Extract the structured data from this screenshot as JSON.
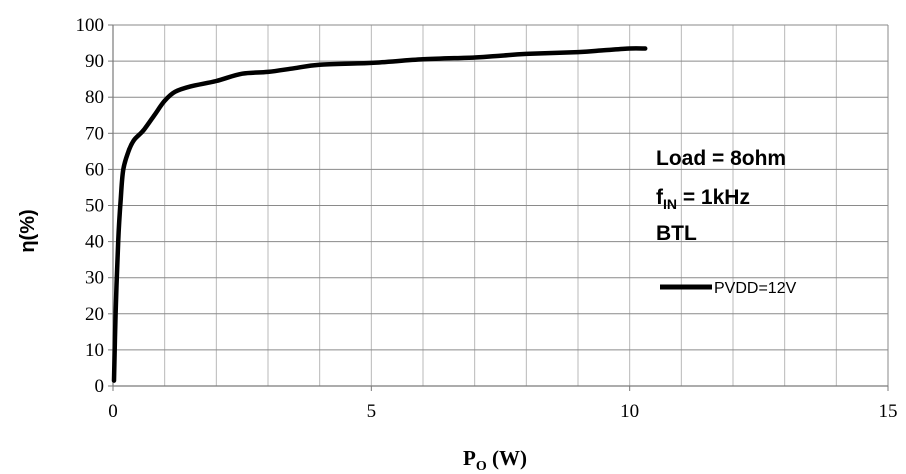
{
  "chart_data": {
    "type": "line",
    "xlabel_main": "P",
    "xlabel_sub": "O",
    "xlabel_unit": " (W)",
    "ylabel": "η(%)",
    "xlim": [
      0,
      15
    ],
    "ylim": [
      0,
      100
    ],
    "x_ticks": [
      "0",
      "5",
      "10",
      "15"
    ],
    "x_tick_values": [
      0,
      5,
      10,
      15
    ],
    "y_ticks": [
      "0",
      "10",
      "20",
      "30",
      "40",
      "50",
      "60",
      "70",
      "80",
      "90",
      "100"
    ],
    "y_tick_values": [
      0,
      10,
      20,
      30,
      40,
      50,
      60,
      70,
      80,
      90,
      100
    ],
    "grid": true,
    "minor_x_grid_step": 1,
    "major_y_grid_step": 10,
    "legend_position": "right",
    "annotations": {
      "line1": "Load = 8ohm",
      "line2_main": "f",
      "line2_sub": "IN",
      "line2_rest": " = 1kHz",
      "line3": "BTL"
    },
    "series": [
      {
        "name": "PVDD=12V",
        "color": "#000000",
        "x": [
          0.02,
          0.05,
          0.1,
          0.15,
          0.2,
          0.3,
          0.4,
          0.5,
          0.6,
          0.8,
          1.0,
          1.2,
          1.5,
          2.0,
          2.5,
          3.0,
          3.5,
          4.0,
          5.0,
          6.0,
          7.0,
          7.5,
          8.0,
          9.0,
          9.5,
          10.0,
          10.3
        ],
        "y": [
          1.5,
          20,
          40,
          52,
          60,
          65,
          68,
          69.5,
          71,
          75,
          79,
          81.5,
          83,
          84.5,
          86.5,
          87,
          88,
          89,
          89.5,
          90.5,
          91,
          91.5,
          92,
          92.5,
          93,
          93.5,
          93.5
        ]
      }
    ]
  }
}
